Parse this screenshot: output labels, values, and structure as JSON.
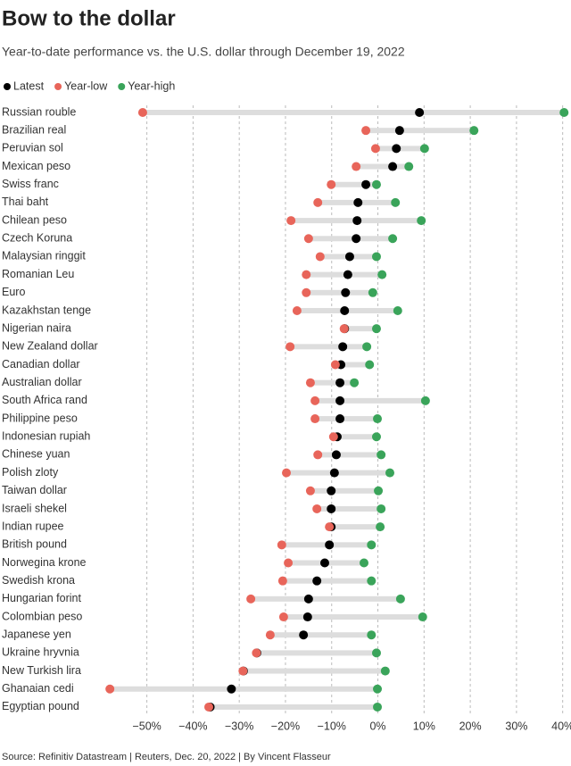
{
  "chart_data": {
    "type": "dot-range",
    "title": "Bow to the dollar",
    "subtitle": "Year-to-date performance vs. the U.S. dollar through December 19, 2022",
    "source": "Source: Refinitiv Datastream | Reuters, Dec. 20, 2022 | By Vincent Flasseur",
    "categories": [
      "Russian rouble",
      "Brazilian real",
      "Peruvian sol",
      "Mexican peso",
      "Swiss franc",
      "Thai baht",
      "Chilean peso",
      "Czech Koruna",
      "Malaysian ringgit",
      "Romanian Leu",
      "Euro",
      "Kazakhstan tenge",
      "Nigerian naira",
      "New Zealand dollar",
      "Canadian dollar",
      "Australian dollar",
      "South Africa rand",
      "Philippine peso",
      "Indonesian rupiah",
      "Chinese yuan",
      "Polish zloty",
      "Taiwan dollar",
      "Israeli shekel",
      "Indian rupee",
      "British pound",
      "Norwegina krone",
      "Swedish krona",
      "Hungarian forint",
      "Colombian peso",
      "Japanese yen",
      "Ukraine hryvnia",
      "New Turkish lira",
      "Ghanaian cedi",
      "Egyptian pound"
    ],
    "series": [
      {
        "name": "Latest",
        "color": "#000000",
        "values": [
          9.0,
          4.7,
          4.0,
          3.2,
          -2.6,
          -4.3,
          -4.5,
          -4.7,
          -6.1,
          -6.5,
          -7.0,
          -7.2,
          -7.2,
          -7.6,
          -8.0,
          -8.2,
          -8.2,
          -8.2,
          -8.8,
          -9.0,
          -9.4,
          -10.1,
          -10.1,
          -10.1,
          -10.5,
          -11.5,
          -13.2,
          -15.0,
          -15.2,
          -16.1,
          -26.2,
          -29.1,
          -31.7,
          -36.3
        ]
      },
      {
        "name": "Year-low",
        "color": "#e8655a",
        "values": [
          -50.9,
          -2.6,
          -0.5,
          -4.7,
          -10.1,
          -13.0,
          -18.8,
          -15.0,
          -12.5,
          -15.5,
          -15.5,
          -17.5,
          -7.3,
          -19.0,
          -9.2,
          -14.6,
          -13.6,
          -13.6,
          -9.6,
          -13.0,
          -19.8,
          -14.6,
          -13.2,
          -10.5,
          -20.8,
          -19.4,
          -20.6,
          -27.5,
          -20.4,
          -23.3,
          -26.3,
          -29.2,
          -58.0,
          -36.6
        ]
      },
      {
        "name": "Year-high",
        "color": "#3aa45a",
        "values": [
          40.3,
          20.8,
          10.1,
          6.7,
          -0.3,
          3.8,
          9.4,
          3.2,
          -0.3,
          0.9,
          -1.1,
          4.3,
          -0.3,
          -2.4,
          -1.8,
          -5.1,
          10.3,
          -0.1,
          -0.3,
          0.7,
          2.6,
          0.1,
          0.7,
          0.5,
          -1.4,
          -3.0,
          -1.4,
          4.9,
          9.7,
          -1.4,
          -0.3,
          1.6,
          -0.1,
          -0.1
        ]
      }
    ],
    "xlim": [
      -59,
      41.8
    ],
    "xticks": [
      {
        "value": -50,
        "label": "−50%"
      },
      {
        "value": -40,
        "label": "−40%"
      },
      {
        "value": -30,
        "label": "−30%"
      },
      {
        "value": -20,
        "label": "−20%"
      },
      {
        "value": -10,
        "label": "−10%"
      },
      {
        "value": 0,
        "label": "0%"
      },
      {
        "value": 10,
        "label": "10%"
      },
      {
        "value": 20,
        "label": "20%"
      },
      {
        "value": 30,
        "label": "30%"
      },
      {
        "value": 40,
        "label": "40%"
      }
    ],
    "grid": true
  }
}
